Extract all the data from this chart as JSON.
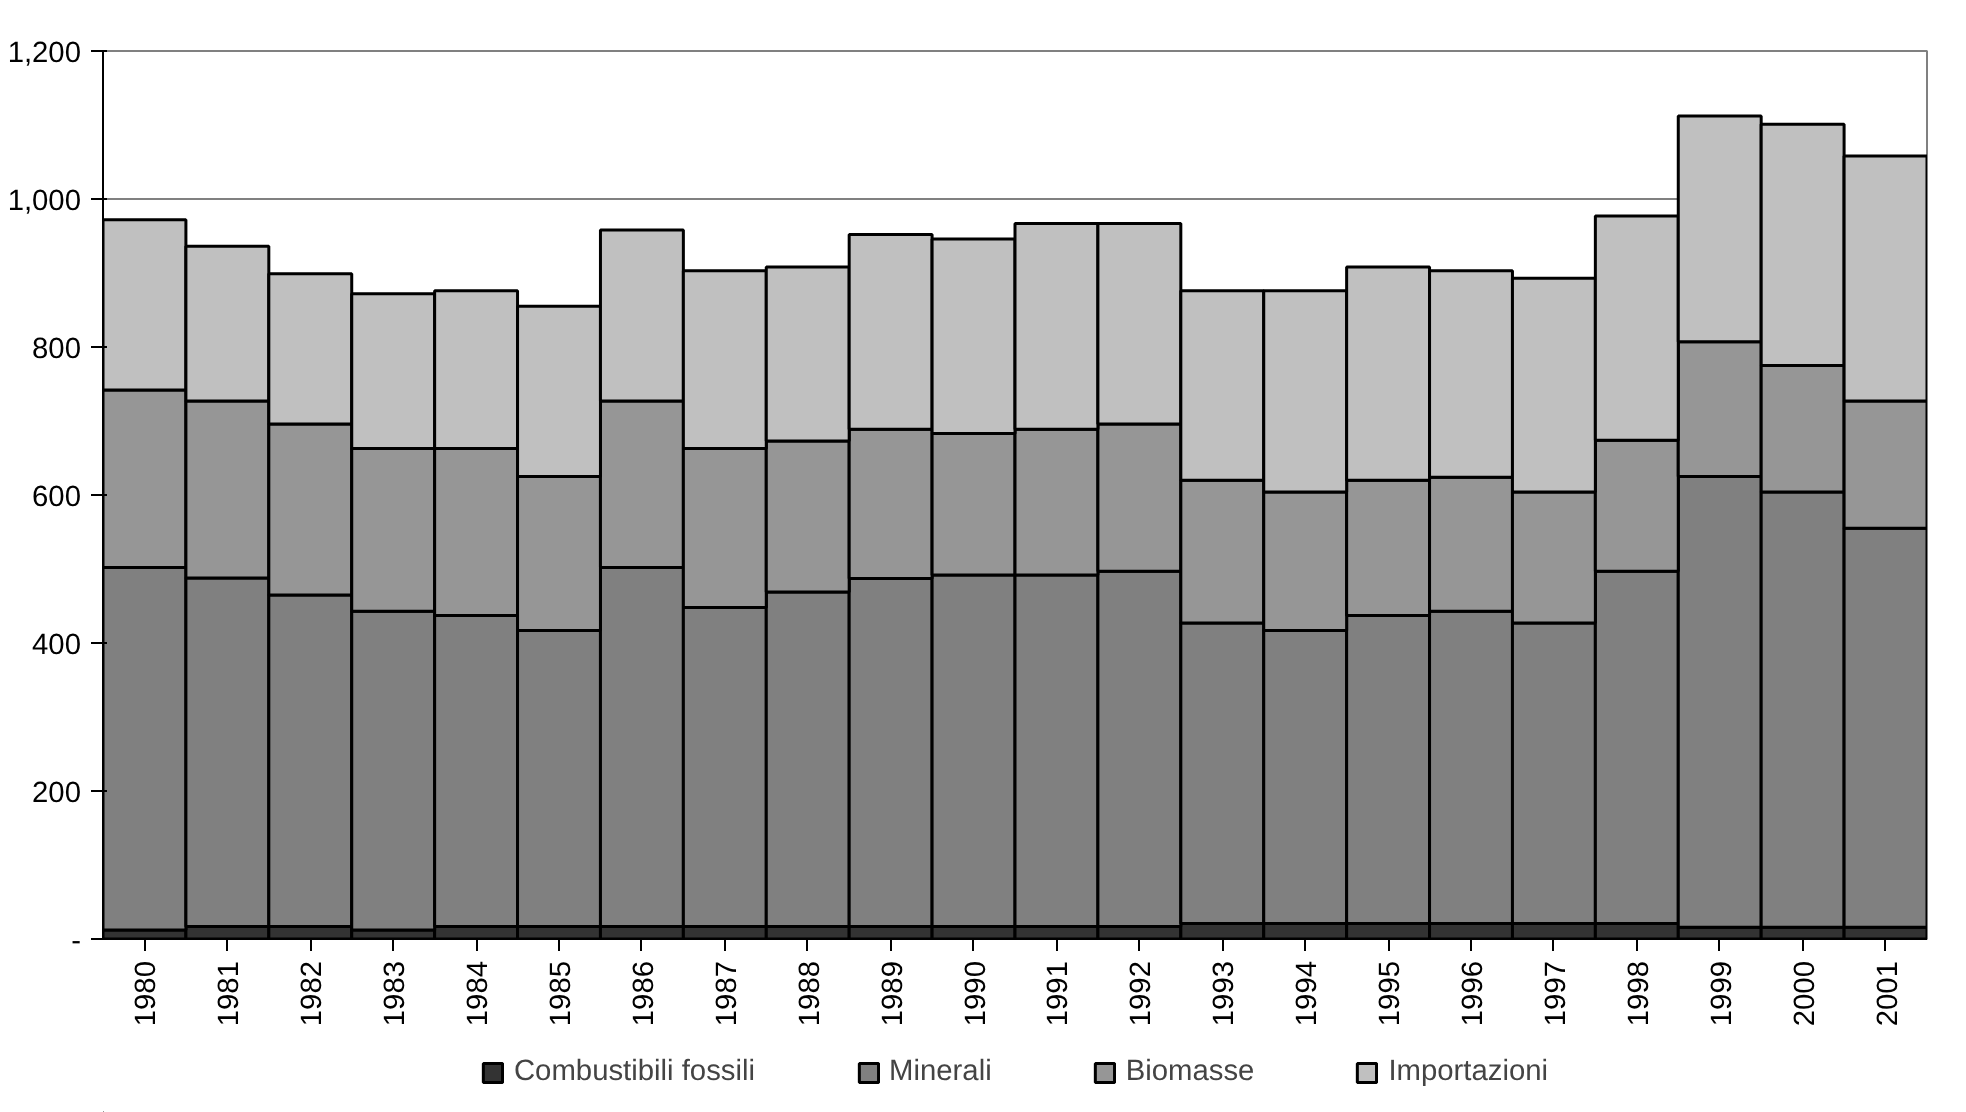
{
  "chart_data": {
    "type": "bar",
    "stacked": true,
    "categories": [
      "1980",
      "1981",
      "1982",
      "1983",
      "1984",
      "1985",
      "1986",
      "1987",
      "1988",
      "1989",
      "1990",
      "1991",
      "1992",
      "1993",
      "1994",
      "1995",
      "1996",
      "1997",
      "1998",
      "1999",
      "2000",
      "2001"
    ],
    "series": [
      {
        "name": "Combustibili fossili",
        "color": "#333333",
        "values": [
          12,
          17,
          17,
          12,
          17,
          17,
          17,
          17,
          17,
          17,
          17,
          17,
          17,
          21,
          21,
          21,
          21,
          21,
          21,
          16,
          16,
          16
        ]
      },
      {
        "name": "Minerali",
        "color": "#808080",
        "values": [
          490,
          471,
          448,
          431,
          420,
          400,
          485,
          431,
          452,
          470,
          475,
          475,
          480,
          406,
          396,
          416,
          422,
          406,
          476,
          609,
          588,
          539
        ]
      },
      {
        "name": "Biomasse",
        "color": "#969696",
        "values": [
          240,
          239,
          231,
          220,
          226,
          208,
          225,
          215,
          204,
          202,
          191,
          197,
          199,
          193,
          187,
          183,
          181,
          177,
          177,
          182,
          171,
          172
        ]
      },
      {
        "name": "Importazioni",
        "color": "#c0c0c0",
        "values": [
          230,
          209,
          203,
          209,
          213,
          230,
          231,
          240,
          235,
          263,
          263,
          278,
          271,
          256,
          272,
          288,
          279,
          289,
          303,
          305,
          326,
          331
        ]
      }
    ],
    "ylim": [
      0,
      1200
    ],
    "yticks": [
      {
        "value": 0,
        "label": "-"
      },
      {
        "value": 200,
        "label": "200"
      },
      {
        "value": 400,
        "label": "400"
      },
      {
        "value": 600,
        "label": "600"
      },
      {
        "value": 800,
        "label": "800"
      },
      {
        "value": 1000,
        "label": "1,000"
      },
      {
        "value": 1200,
        "label": "1,200"
      }
    ],
    "grid": "y",
    "legend": "bottom"
  }
}
